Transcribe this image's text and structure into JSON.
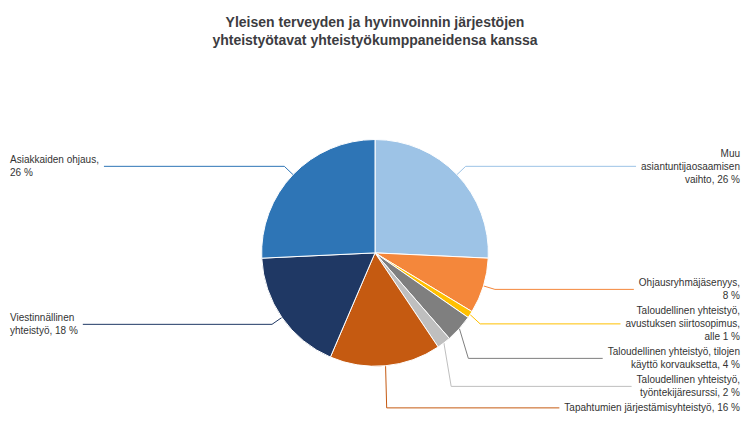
{
  "chart_data": {
    "type": "pie",
    "title": "Yleisen terveyden ja hyvinvoinnin järjestöjen\nyhteistyötavat yhteistyökumppaneidensa kanssa",
    "categories": [
      "Muu\nasiantuntijaosaamisen\nvaihto, 26 %",
      "Ohjausryhmäjäsenyys,\n8 %",
      "Taloudellinen yhteistyö,\navustuksen siirtosopimus,\nalle 1 %",
      "Taloudellinen yhteistyö, tilojen\nkäyttö korvauksetta, 4 %",
      "Taloudellinen yhteistyö,\ntyöntekijäresurssi, 2 %",
      "Tapahtumien järjestämisyhteistyö, 16 %",
      "Viestinnällinen\nyhteistyö, 18 %",
      "Asiakkaiden ohjaus,\n26 %"
    ],
    "values": [
      26,
      8,
      1,
      4,
      2,
      16,
      18,
      26
    ],
    "colors": [
      "#9DC3E6",
      "#F4873B",
      "#FFC000",
      "#7F7F7F",
      "#BFBFBF",
      "#C55A11",
      "#1F3864",
      "#2E75B6"
    ]
  }
}
